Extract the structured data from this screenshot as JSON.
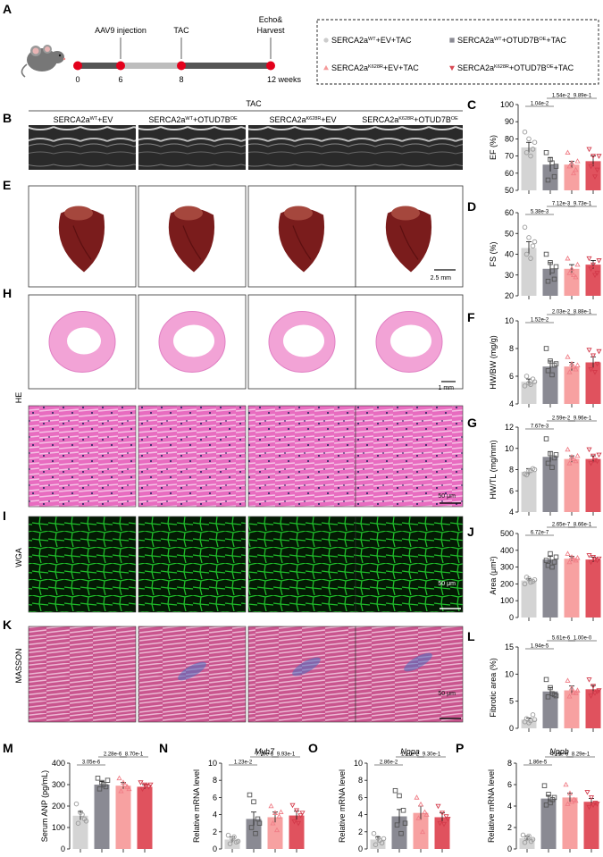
{
  "panels": {
    "A": "A",
    "B": "B",
    "C": "C",
    "D": "D",
    "E": "E",
    "F": "F",
    "G": "G",
    "H": "H",
    "I": "I",
    "J": "J",
    "K": "K",
    "L": "L",
    "M": "M",
    "N": "N",
    "O": "O",
    "P": "P"
  },
  "timeline": {
    "ticks": [
      "0",
      "6",
      "8",
      "12 weeks"
    ],
    "events": [
      "AAV9 injection",
      "TAC",
      "Echo&",
      "Harvest"
    ]
  },
  "legend": [
    {
      "base": "SERCA2a",
      "sup": "WT",
      "rest": "+EV+TAC",
      "symbol": "circle",
      "color": "#cccccc"
    },
    {
      "base": "SERCA2a",
      "sup": "WT",
      "rest": "+OTUD7B",
      "sup2": "OE",
      "rest2": "+TAC",
      "symbol": "square",
      "color": "#8a8a93"
    },
    {
      "base": "SERCA2a",
      "sup": "K628R",
      "rest": "+EV+TAC",
      "symbol": "triangle",
      "color": "#f59a9a"
    },
    {
      "base": "SERCA2a",
      "sup": "K628R",
      "rest": "+OTUD7B",
      "sup2": "OE",
      "rest2": "+TAC",
      "symbol": "triangle-down",
      "color": "#d84a55"
    }
  ],
  "image_panels": {
    "tac_header": "TAC",
    "columns": [
      {
        "base": "SERCA2a",
        "sup": "WT",
        "rest": "+EV",
        "sup2": "",
        "rest2": ""
      },
      {
        "base": "SERCA2a",
        "sup": "WT",
        "rest": "+OTUD7B",
        "sup2": "OE",
        "rest2": ""
      },
      {
        "base": "SERCA2a",
        "sup": "K628R",
        "rest": "+EV",
        "sup2": "",
        "rest2": ""
      },
      {
        "base": "SERCA2a",
        "sup": "K628R",
        "rest": "+OTUD7B",
        "sup2": "OE",
        "rest2": ""
      }
    ],
    "row_labels": {
      "he": "HE",
      "wga": "WGA",
      "masson": "MASSON"
    },
    "scale_bars": {
      "heart": "2.5 mm",
      "he_low": "1 mm",
      "he_high": "50 μm",
      "wga": "50 μm",
      "masson": "50 μm"
    }
  },
  "colors": {
    "g1": "#d4d4d4",
    "g2": "#8a8a93",
    "g3": "#f7a1a1",
    "g4": "#e0525e",
    "timeline_dark": "#555555",
    "timeline_light": "#bdbdbd",
    "dot": "#e3001b",
    "he_pink": "#f0a8d6",
    "wga_green": "#1fbf2a",
    "masson_pink": "#c85a8c",
    "masson_blue": "#4a6fc0"
  },
  "chart_data": [
    {
      "id": "C",
      "type": "bar",
      "ylabel": "EF (%)",
      "ylim": [
        50,
        100
      ],
      "yticks": [
        50,
        60,
        70,
        80,
        90,
        100
      ],
      "categories": [
        "g1",
        "g2",
        "g3",
        "g4"
      ],
      "values": [
        75,
        65,
        65,
        67
      ],
      "errors": [
        3,
        4,
        2,
        3
      ],
      "points": [
        [
          84,
          80,
          74,
          72,
          70,
          78
        ],
        [
          72,
          68,
          58,
          56,
          66,
          64
        ],
        [
          72,
          66,
          62,
          64,
          60,
          67
        ],
        [
          74,
          70,
          62,
          64,
          58,
          70
        ]
      ],
      "pvalues": [
        {
          "from": 0,
          "to": 1,
          "label": "1.04e-2",
          "level": 0
        },
        {
          "from": 1,
          "to": 2,
          "label": "1.54e-2",
          "level": 1
        },
        {
          "from": 2,
          "to": 3,
          "label": "9.89e-1",
          "level": 1
        }
      ]
    },
    {
      "id": "D",
      "type": "bar",
      "ylabel": "FS (%)",
      "ylim": [
        20,
        60
      ],
      "yticks": [
        20,
        30,
        40,
        50,
        60
      ],
      "categories": [
        "g1",
        "g2",
        "g3",
        "g4"
      ],
      "values": [
        43,
        33,
        33,
        35
      ],
      "errors": [
        3,
        3,
        2,
        2
      ],
      "points": [
        [
          53,
          48,
          44,
          40,
          38,
          46
        ],
        [
          40,
          36,
          28,
          27,
          32,
          34
        ],
        [
          38,
          33,
          29,
          31,
          30,
          35
        ],
        [
          38,
          35,
          31,
          33,
          30,
          37
        ]
      ],
      "pvalues": [
        {
          "from": 0,
          "to": 1,
          "label": "5.38e-3",
          "level": 0
        },
        {
          "from": 1,
          "to": 2,
          "label": "7.12e-3",
          "level": 1
        },
        {
          "from": 2,
          "to": 3,
          "label": "9.73e-1",
          "level": 1
        }
      ]
    },
    {
      "id": "F",
      "type": "bar",
      "ylabel": "HW/BW (mg/g)",
      "ylim": [
        4,
        10
      ],
      "yticks": [
        4,
        6,
        8,
        10
      ],
      "categories": [
        "g1",
        "g2",
        "g3",
        "g4"
      ],
      "values": [
        5.6,
        6.7,
        6.7,
        7.0
      ],
      "errors": [
        0.2,
        0.4,
        0.3,
        0.4
      ],
      "points": [
        [
          5.3,
          5.5,
          5.8,
          6.0,
          5.4,
          5.6
        ],
        [
          8.0,
          7.1,
          6.8,
          6.4,
          6.1,
          6.9
        ],
        [
          7.4,
          6.9,
          6.5,
          6.3,
          6.7,
          6.8
        ],
        [
          7.9,
          7.5,
          6.9,
          6.5,
          6.3,
          7.8
        ]
      ],
      "pvalues": [
        {
          "from": 0,
          "to": 1,
          "label": "1.52e-2",
          "level": 0
        },
        {
          "from": 1,
          "to": 2,
          "label": "2.03e-2",
          "level": 1
        },
        {
          "from": 2,
          "to": 3,
          "label": "8.88e-1",
          "level": 1
        }
      ]
    },
    {
      "id": "G",
      "type": "bar",
      "ylabel": "HW/TL (mg/mm)",
      "ylim": [
        4,
        12
      ],
      "yticks": [
        4,
        6,
        8,
        10,
        12
      ],
      "categories": [
        "g1",
        "g2",
        "g3",
        "g4"
      ],
      "values": [
        7.8,
        9.2,
        9.0,
        9.0
      ],
      "errors": [
        0.3,
        0.5,
        0.3,
        0.3
      ],
      "points": [
        [
          7.6,
          7.9,
          8.1,
          7.5,
          7.9,
          8.0
        ],
        [
          10.9,
          9.5,
          9.1,
          8.6,
          8.2,
          9.4
        ],
        [
          9.9,
          9.2,
          8.8,
          8.6,
          9.0,
          9.3
        ],
        [
          9.9,
          9.3,
          8.8,
          8.6,
          8.9,
          9.4
        ]
      ],
      "pvalues": [
        {
          "from": 0,
          "to": 1,
          "label": "7.67e-3",
          "level": 0
        },
        {
          "from": 1,
          "to": 2,
          "label": "2.59e-2",
          "level": 1
        },
        {
          "from": 2,
          "to": 3,
          "label": "9.96e-1",
          "level": 1
        }
      ]
    },
    {
      "id": "J",
      "type": "bar",
      "ylabel": "Area (μm²)",
      "ylim": [
        0,
        500
      ],
      "yticks": [
        0,
        100,
        200,
        300,
        400,
        500
      ],
      "categories": [
        "g1",
        "g2",
        "g3",
        "g4"
      ],
      "values": [
        220,
        345,
        350,
        345
      ],
      "errors": [
        10,
        20,
        15,
        15
      ],
      "points": [
        [
          200,
          230,
          215,
          240,
          210,
          225
        ],
        [
          340,
          380,
          330,
          310,
          300,
          360
        ],
        [
          380,
          360,
          340,
          330,
          350,
          355
        ],
        [
          370,
          360,
          340,
          330,
          345,
          350
        ]
      ],
      "pvalues": [
        {
          "from": 0,
          "to": 1,
          "label": "6.72e-7",
          "level": 0
        },
        {
          "from": 1,
          "to": 2,
          "label": "2.65e-7",
          "level": 1
        },
        {
          "from": 2,
          "to": 3,
          "label": "8.66e-1",
          "level": 1
        }
      ]
    },
    {
      "id": "L",
      "type": "bar",
      "ylabel": "Fibrotic area (%)",
      "ylim": [
        0,
        15
      ],
      "yticks": [
        0,
        5,
        10,
        15
      ],
      "categories": [
        "g1",
        "g2",
        "g3",
        "g4"
      ],
      "values": [
        1.6,
        6.8,
        7.0,
        7.2
      ],
      "errors": [
        0.3,
        0.7,
        0.8,
        0.7
      ],
      "points": [
        [
          1.2,
          1.0,
          2.5,
          1.8,
          1.4,
          1.6
        ],
        [
          9.0,
          7.5,
          6.2,
          5.8,
          6.4,
          6.0
        ],
        [
          8.8,
          7.4,
          6.5,
          5.9,
          6.6,
          7.0
        ],
        [
          9.0,
          7.8,
          6.8,
          6.0,
          6.5,
          7.0
        ]
      ],
      "pvalues": [
        {
          "from": 0,
          "to": 1,
          "label": "1.94e-5",
          "level": 0
        },
        {
          "from": 1,
          "to": 2,
          "label": "5.61e-6",
          "level": 1
        },
        {
          "from": 2,
          "to": 3,
          "label": "1.00e-0",
          "level": 1
        }
      ]
    },
    {
      "id": "M",
      "type": "bar",
      "ylabel": "Serum ANP (pg/mL)",
      "ylim": [
        0,
        400
      ],
      "yticks": [
        0,
        100,
        200,
        300,
        400
      ],
      "categories": [
        "g1",
        "g2",
        "g3",
        "g4"
      ],
      "values": [
        155,
        300,
        295,
        290
      ],
      "errors": [
        20,
        15,
        15,
        10
      ],
      "points": [
        [
          210,
          170,
          140,
          120,
          160,
          130
        ],
        [
          330,
          310,
          290,
          280,
          300,
          320
        ],
        [
          330,
          310,
          290,
          270,
          300,
          280
        ],
        [
          310,
          300,
          290,
          280,
          295,
          300
        ]
      ],
      "pvalues": [
        {
          "from": 0,
          "to": 1,
          "label": "3.05e-6",
          "level": 0
        },
        {
          "from": 1,
          "to": 2,
          "label": "2.28e-6",
          "level": 1
        },
        {
          "from": 2,
          "to": 3,
          "label": "8.70e-1",
          "level": 1
        }
      ]
    },
    {
      "id": "N",
      "type": "bar",
      "title": "Myh7",
      "ylabel": "Relative mRNA level",
      "ylim": [
        0,
        10
      ],
      "yticks": [
        0,
        2,
        4,
        6,
        8,
        10
      ],
      "categories": [
        "g1",
        "g2",
        "g3",
        "g4"
      ],
      "values": [
        1.1,
        3.5,
        3.7,
        3.9
      ],
      "errors": [
        0.3,
        0.8,
        0.6,
        0.5
      ],
      "points": [
        [
          1.6,
          1.2,
          0.8,
          0.6,
          1.4,
          0.9
        ],
        [
          6.3,
          5.5,
          3.5,
          2.5,
          1.8,
          3.0
        ],
        [
          5.0,
          4.2,
          3.8,
          3.0,
          2.2,
          4.3
        ],
        [
          5.1,
          4.5,
          3.9,
          3.2,
          3.0,
          4.2
        ]
      ],
      "pvalues": [
        {
          "from": 0,
          "to": 1,
          "label": "1.23e-2",
          "level": 0
        },
        {
          "from": 1,
          "to": 2,
          "label": "7.79e-3",
          "level": 1
        },
        {
          "from": 2,
          "to": 3,
          "label": "9.93e-1",
          "level": 1
        }
      ]
    },
    {
      "id": "O",
      "type": "bar",
      "title": "Nppa",
      "ylabel": "Relative mRNA level",
      "ylim": [
        0,
        10
      ],
      "yticks": [
        0,
        2,
        4,
        6,
        8,
        10
      ],
      "categories": [
        "g1",
        "g2",
        "g3",
        "g4"
      ],
      "values": [
        1.1,
        3.8,
        4.2,
        3.7
      ],
      "errors": [
        0.3,
        0.8,
        0.8,
        0.5
      ],
      "points": [
        [
          1.8,
          1.3,
          0.7,
          0.5,
          1.0,
          1.2
        ],
        [
          6.8,
          6.2,
          4.5,
          2.8,
          1.8,
          3.0
        ],
        [
          6.0,
          5.2,
          4.3,
          3.6,
          2.0,
          4.0
        ],
        [
          5.0,
          4.2,
          3.8,
          3.0,
          2.9,
          3.5
        ]
      ],
      "pvalues": [
        {
          "from": 0,
          "to": 1,
          "label": "2.86e-2",
          "level": 0
        },
        {
          "from": 1,
          "to": 2,
          "label": "1.11e-2",
          "level": 1
        },
        {
          "from": 2,
          "to": 3,
          "label": "9.30e-1",
          "level": 1
        }
      ]
    },
    {
      "id": "P",
      "type": "bar",
      "title": "Nppb",
      "ylabel": "Relative mRNA level",
      "ylim": [
        0,
        8
      ],
      "yticks": [
        0,
        2,
        4,
        6,
        8
      ],
      "categories": [
        "g1",
        "g2",
        "g3",
        "g4"
      ],
      "values": [
        1.0,
        4.7,
        4.8,
        4.4
      ],
      "errors": [
        0.2,
        0.3,
        0.4,
        0.3
      ],
      "points": [
        [
          1.3,
          1.0,
          0.7,
          0.6,
          1.2,
          0.9
        ],
        [
          5.9,
          5.1,
          4.6,
          4.1,
          4.3,
          4.8
        ],
        [
          6.0,
          5.2,
          4.6,
          4.2,
          4.4,
          4.5
        ],
        [
          5.3,
          4.8,
          4.3,
          3.9,
          4.1,
          4.2
        ]
      ],
      "pvalues": [
        {
          "from": 0,
          "to": 1,
          "label": "1.86e-5",
          "level": 0
        },
        {
          "from": 1,
          "to": 2,
          "label": "4.19e-6",
          "level": 1
        },
        {
          "from": 2,
          "to": 3,
          "label": "8.29e-1",
          "level": 1
        }
      ]
    }
  ]
}
